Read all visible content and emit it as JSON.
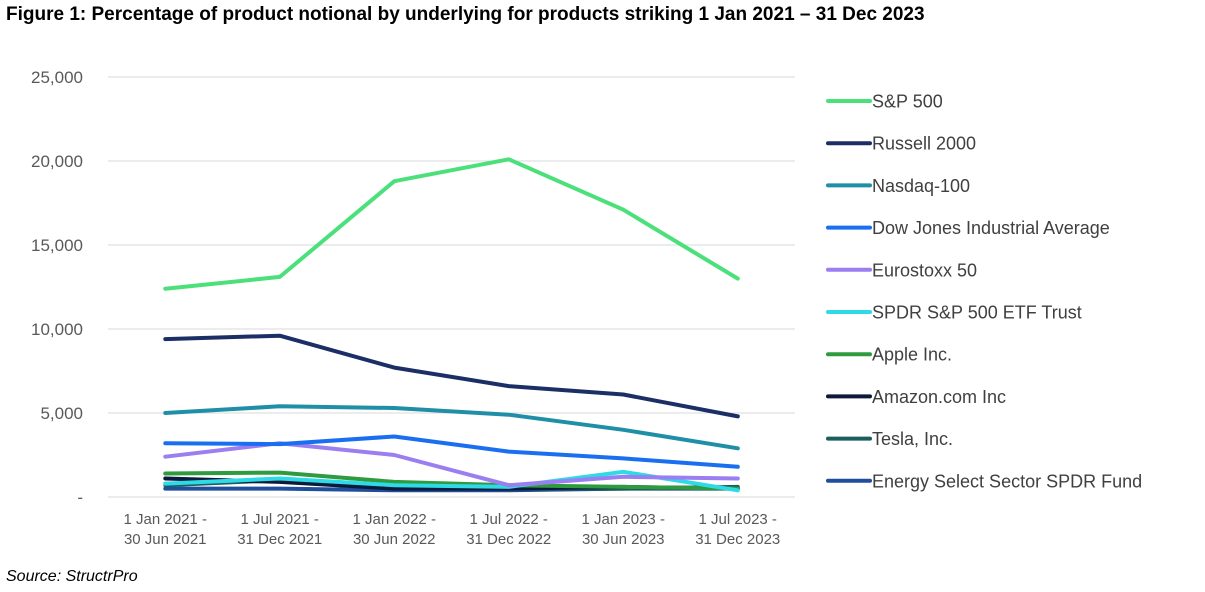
{
  "figure": {
    "title": "Figure 1: Percentage of product notional by underlying for products striking 1 Jan 2021 – 31 Dec 2023",
    "source": "Source: StructrPro"
  },
  "chart_data": {
    "type": "line",
    "title": "Figure 1: Percentage of product notional by underlying for products striking 1 Jan 2021 – 31 Dec 2023",
    "xlabel": "",
    "ylabel": "",
    "ylim": [
      0,
      25000
    ],
    "yticks": [
      0,
      5000,
      10000,
      15000,
      20000,
      25000
    ],
    "ytick_labels": [
      "-",
      "5,000",
      "10,000",
      "15,000",
      "20,000",
      "25,000"
    ],
    "grid": true,
    "legend_position": "right",
    "categories": [
      [
        "1 Jan 2021 -",
        "30 Jun 2021"
      ],
      [
        "1 Jul 2021 -",
        "31 Dec 2021"
      ],
      [
        "1 Jan 2022 -",
        "30 Jun 2022"
      ],
      [
        "1 Jul 2022 -",
        "31 Dec 2022"
      ],
      [
        "1 Jan 2023 -",
        "30 Jun 2023"
      ],
      [
        "1 Jul 2023 -",
        "31 Dec 2023"
      ]
    ],
    "series": [
      {
        "name": "Energy Select Sector SPDR Fund",
        "color": "#1f4e9c",
        "values": [
          500,
          500,
          400,
          400,
          500,
          500
        ]
      },
      {
        "name": "Tesla, Inc.",
        "color": "#1b5e5e",
        "values": [
          700,
          1000,
          600,
          500,
          500,
          600
        ]
      },
      {
        "name": "Amazon.com Inc",
        "color": "#0b1a3a",
        "values": [
          1100,
          900,
          500,
          500,
          600,
          500
        ]
      },
      {
        "name": "Apple Inc.",
        "color": "#2e9b3f",
        "values": [
          1400,
          1450,
          900,
          700,
          600,
          500
        ]
      },
      {
        "name": "SPDR S&P 500 ETF Trust",
        "color": "#2fd9e6",
        "values": [
          800,
          1100,
          700,
          600,
          1500,
          400
        ]
      },
      {
        "name": "Eurostoxx 50",
        "color": "#9b7ef0",
        "values": [
          2400,
          3200,
          2500,
          700,
          1200,
          1100
        ]
      },
      {
        "name": "Dow Jones Industrial Average",
        "color": "#1a6ff0",
        "values": [
          3200,
          3150,
          3600,
          2700,
          2300,
          1800
        ]
      },
      {
        "name": "Nasdaq-100",
        "color": "#1f8fa8",
        "values": [
          5000,
          5400,
          5300,
          4900,
          4000,
          2900
        ]
      },
      {
        "name": "Russell 2000",
        "color": "#1b2f66",
        "values": [
          9400,
          9600,
          7700,
          6600,
          6100,
          4800
        ]
      },
      {
        "name": "S&P 500",
        "color": "#4be07a",
        "values": [
          12400,
          13100,
          18800,
          20100,
          17100,
          13000
        ]
      }
    ],
    "legend_order": [
      "S&P 500",
      "Russell 2000",
      "Nasdaq-100",
      "Dow Jones Industrial Average",
      "Eurostoxx 50",
      "SPDR S&P 500 ETF Trust",
      "Apple Inc.",
      "Amazon.com Inc",
      "Tesla, Inc.",
      "Energy Select Sector SPDR Fund"
    ]
  }
}
